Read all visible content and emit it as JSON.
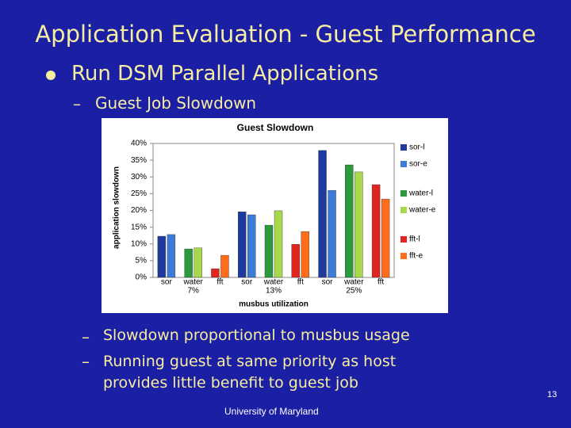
{
  "slide": {
    "title": "Application Evaluation - Guest Performance",
    "bullet": "Run DSM Parallel Applications",
    "sub_bullet": "Guest Job Slowdown",
    "points": [
      "Slowdown proportional to musbus usage",
      "Running guest at same priority as host provides little benefit to guest job"
    ],
    "page_number": "13",
    "footer": "University of Maryland"
  },
  "chart_data": {
    "type": "bar",
    "title": "Guest Slowdown",
    "x_label": "musbus utilization",
    "y_label": "application slowdown",
    "categories": [
      "sor",
      "water",
      "fft",
      "sor",
      "water",
      "fft",
      "sor",
      "water",
      "fft"
    ],
    "x_groups": [
      "7%",
      "13%",
      "25%"
    ],
    "series": [
      {
        "name": "sor-l",
        "color": "#1e3a9e",
        "values": [
          12.3,
          null,
          null,
          19.6,
          null,
          null,
          37.9,
          null,
          null
        ]
      },
      {
        "name": "sor-e",
        "color": "#3c7bd8",
        "values": [
          12.8,
          null,
          null,
          18.7,
          null,
          null,
          26,
          null,
          null
        ]
      },
      {
        "name": "water-l",
        "color": "#2b9a3c",
        "values": [
          null,
          8.5,
          null,
          null,
          15.6,
          null,
          null,
          33.6,
          null
        ]
      },
      {
        "name": "water-e",
        "color": "#a8d94c",
        "values": [
          null,
          8.8,
          null,
          null,
          19.9,
          null,
          null,
          31.5,
          null
        ]
      },
      {
        "name": "fft-l",
        "color": "#e0251f",
        "values": [
          null,
          null,
          2.6,
          null,
          null,
          9.9,
          null,
          null,
          27.7
        ]
      },
      {
        "name": "fft-e",
        "color": "#ff6c1c",
        "values": [
          null,
          null,
          6.6,
          null,
          null,
          13.7,
          null,
          null,
          23.4
        ]
      }
    ],
    "ylim": [
      0,
      40
    ],
    "yticks": [
      {
        "value": 0,
        "label": "0%"
      },
      {
        "value": 5,
        "label": "5%"
      },
      {
        "value": 10,
        "label": "10%"
      },
      {
        "value": 15,
        "label": "15%"
      },
      {
        "value": 20,
        "label": "20%"
      },
      {
        "value": 25,
        "label": "25%"
      },
      {
        "value": 30,
        "label": "30%"
      },
      {
        "value": 35,
        "label": "35%"
      },
      {
        "value": 40,
        "label": "40%"
      }
    ],
    "grid": false,
    "legend": "right"
  }
}
